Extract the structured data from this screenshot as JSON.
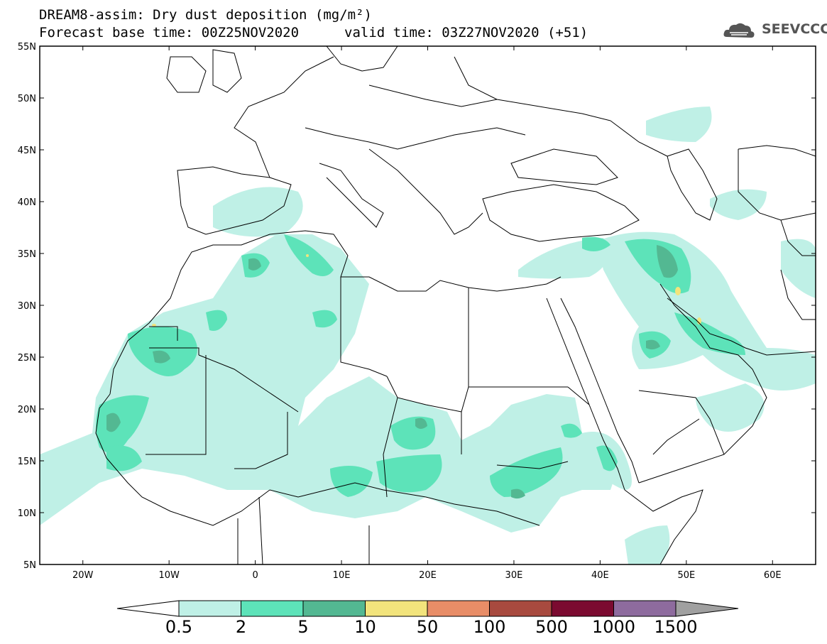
{
  "header": {
    "title": "DREAM8-assim: Dry dust deposition (mg/m²)",
    "base_time": "Forecast base time: 00Z25NOV2020",
    "valid_time": "valid time: 03Z27NOV2020 (+51)"
  },
  "logo": {
    "text": "SEEVCCC",
    "icon": "cloud-logo-icon"
  },
  "map": {
    "lat_labels": [
      "55N",
      "50N",
      "45N",
      "40N",
      "35N",
      "30N",
      "25N",
      "20N",
      "15N",
      "10N",
      "5N"
    ],
    "lon_labels": [
      "20W",
      "10W",
      "0",
      "10E",
      "20E",
      "30E",
      "40E",
      "50E",
      "60E"
    ],
    "extent": {
      "lon_min": -25,
      "lon_max": 65,
      "lat_min": 5,
      "lat_max": 55
    }
  },
  "colorbar": {
    "labels": [
      "0.5",
      "2",
      "5",
      "10",
      "50",
      "100",
      "500",
      "1000",
      "1500"
    ],
    "colors": [
      "#ffffff",
      "#bff0e6",
      "#5de3b9",
      "#53b892",
      "#f2e47c",
      "#e88d67",
      "#a84a3f",
      "#7b0a30",
      "#8e6b9e",
      "#a0a0a0"
    ]
  },
  "colors": {
    "level_0_5": "#bff0e6",
    "level_2": "#5de3b9",
    "level_5": "#53b892",
    "level_10": "#f2e47c",
    "coastline": "#000000"
  }
}
